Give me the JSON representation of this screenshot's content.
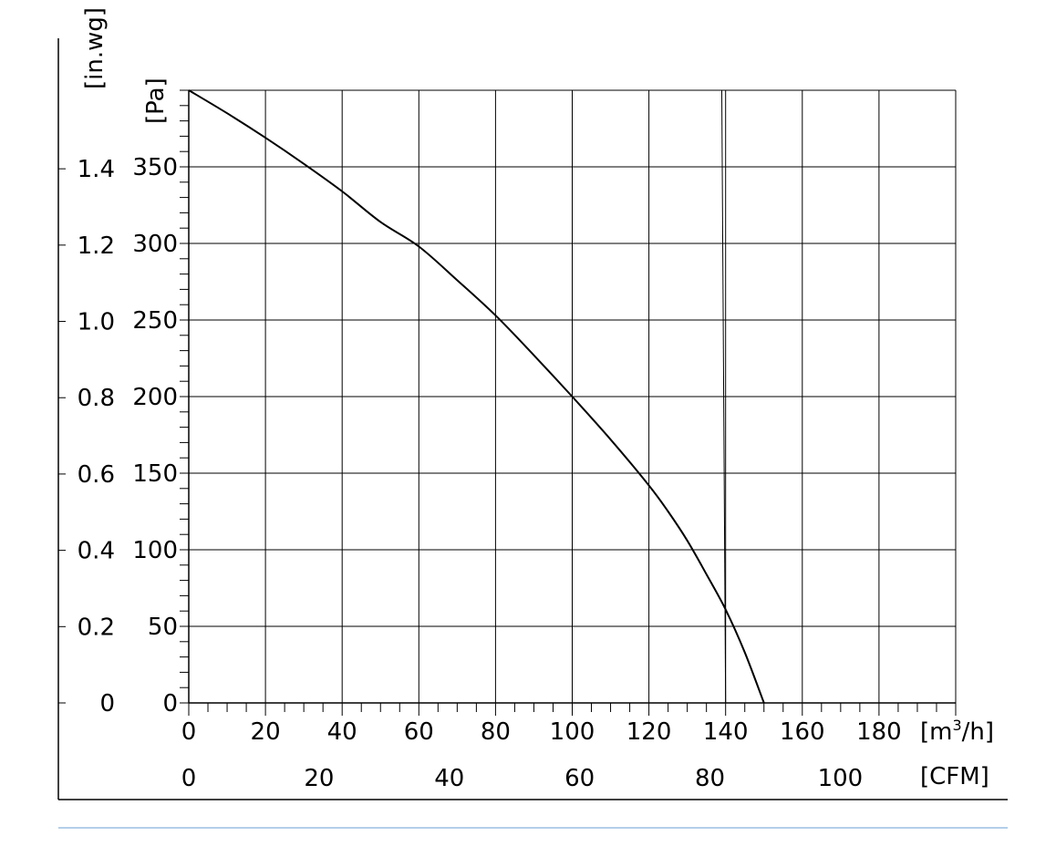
{
  "chart_data": {
    "type": "line",
    "title": "",
    "x_axis": {
      "unit_label": "[m3/h]",
      "unit_main": "[m",
      "unit_sup": "3",
      "unit_tail": "/h]",
      "range": [
        0,
        200
      ],
      "major_ticks": [
        0,
        20,
        40,
        60,
        80,
        100,
        120,
        140,
        160,
        180
      ],
      "minor_step": 5
    },
    "x2_axis": {
      "unit_label": "[CFM]",
      "ticks": [
        0,
        20,
        40,
        60,
        80,
        100
      ],
      "factor_m3h_per_cfm": 1.699
    },
    "y_axis": {
      "unit_label": "[Pa]",
      "range": [
        0,
        400
      ],
      "major_ticks": [
        0,
        50,
        100,
        150,
        200,
        250,
        300,
        350
      ],
      "minor_step": 10
    },
    "y2_axis": {
      "unit_label": "[in.wg]",
      "ticks": [
        "0",
        "0.2",
        "0.4",
        "0.6",
        "0.8",
        "1.0",
        "1.2",
        "1.4"
      ],
      "tick_values": [
        0,
        0.2,
        0.4,
        0.6,
        0.8,
        1.0,
        1.2,
        1.4
      ],
      "factor_pa_per_inwg": 249.09
    },
    "grid": true,
    "series": [
      {
        "name": "",
        "x": [
          0,
          10,
          20,
          30,
          40,
          50,
          60,
          70,
          80,
          90,
          100,
          110,
          120,
          125,
          130,
          135,
          140,
          145,
          150
        ],
        "y": [
          400,
          385,
          369,
          352,
          334,
          314,
          298,
          276,
          253,
          227,
          200,
          172,
          142,
          125,
          106,
          84,
          61,
          33,
          0
        ]
      }
    ],
    "extra_lines": [
      {
        "x": [
          139,
          140
        ],
        "y": [
          400,
          0
        ]
      }
    ]
  }
}
